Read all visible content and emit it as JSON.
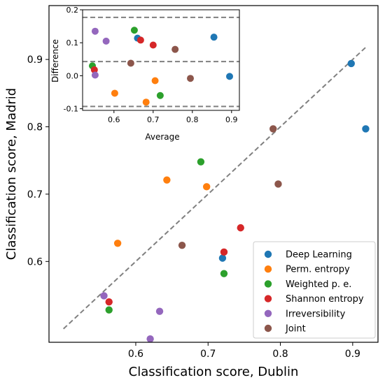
{
  "chart_data": [
    {
      "type": "scatter",
      "role": "main",
      "xlabel": "Classification score, Dublin",
      "ylabel": "Classification score, Madrid",
      "xlim": [
        0.48,
        0.935
      ],
      "ylim": [
        0.48,
        0.98
      ],
      "xticks": [
        0.6,
        0.7,
        0.8,
        0.9
      ],
      "yticks": [
        0.6,
        0.7,
        0.8,
        0.9
      ],
      "grid": false,
      "legend_position": "bottom-right",
      "identity_line": {
        "x": [
          0.5,
          0.92
        ],
        "y": [
          0.5,
          0.92
        ],
        "style": "dashed",
        "color": "#808080"
      },
      "series": [
        {
          "name": "Deep Learning",
          "color": "#1f77b4",
          "x": [
            0.898,
            0.918,
            0.72
          ],
          "y": [
            0.894,
            0.797,
            0.605
          ]
        },
        {
          "name": "Perm. entropy",
          "color": "#ff7f0e",
          "x": [
            0.575,
            0.643,
            0.698
          ],
          "y": [
            0.627,
            0.721,
            0.711
          ]
        },
        {
          "name": "Weighted p. e.",
          "color": "#2ca02c",
          "x": [
            0.563,
            0.69,
            0.722
          ],
          "y": [
            0.528,
            0.748,
            0.582
          ]
        },
        {
          "name": "Shannon entropy",
          "color": "#d62728",
          "x": [
            0.563,
            0.722,
            0.745
          ],
          "y": [
            0.54,
            0.614,
            0.65
          ]
        },
        {
          "name": "Irreversibility",
          "color": "#9467bd",
          "x": [
            0.556,
            0.62,
            0.633
          ],
          "y": [
            0.549,
            0.485,
            0.526
          ]
        },
        {
          "name": "Joint",
          "color": "#8c564b",
          "x": [
            0.664,
            0.79,
            0.797
          ],
          "y": [
            0.624,
            0.797,
            0.715
          ]
        }
      ]
    },
    {
      "type": "scatter",
      "role": "inset",
      "xlabel": "Average",
      "ylabel": "Difference",
      "xlim": [
        0.52,
        0.92
      ],
      "ylim": [
        -0.105,
        0.2
      ],
      "xticks": [
        0.6,
        0.7,
        0.8,
        0.9
      ],
      "yticks": [
        -0.1,
        0.0,
        0.1,
        0.2
      ],
      "reference_lines": [
        0.177,
        0.043,
        -0.093
      ],
      "series": [
        {
          "name": "Deep Learning",
          "color": "#1f77b4",
          "x": [
            0.66,
            0.855,
            0.895
          ],
          "y": [
            0.114,
            0.117,
            -0.002
          ]
        },
        {
          "name": "Perm. entropy",
          "color": "#ff7f0e",
          "x": [
            0.602,
            0.682,
            0.705
          ],
          "y": [
            -0.053,
            -0.08,
            -0.015
          ]
        },
        {
          "name": "Weighted p. e.",
          "color": "#2ca02c",
          "x": [
            0.545,
            0.652,
            0.718
          ],
          "y": [
            0.03,
            0.138,
            -0.06
          ]
        },
        {
          "name": "Shannon entropy",
          "color": "#d62728",
          "x": [
            0.55,
            0.668,
            0.7
          ],
          "y": [
            0.018,
            0.108,
            0.093
          ]
        },
        {
          "name": "Irreversibility",
          "color": "#9467bd",
          "x": [
            0.552,
            0.552,
            0.58
          ],
          "y": [
            0.135,
            0.002,
            0.105
          ]
        },
        {
          "name": "Joint",
          "color": "#8c564b",
          "x": [
            0.643,
            0.756,
            0.795
          ],
          "y": [
            0.038,
            0.08,
            -0.008
          ]
        }
      ]
    }
  ]
}
